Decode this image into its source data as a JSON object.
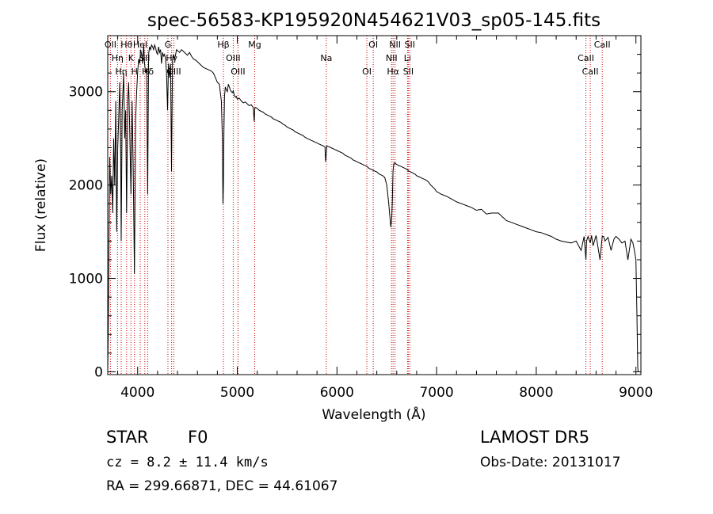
{
  "chart_data": {
    "type": "line",
    "title": "spec-56583-KP195920N454621V03_sp05-145.fits",
    "xlabel": "Wavelength (Å)",
    "ylabel": "Flux (relative)",
    "xlim": [
      3700,
      9050
    ],
    "ylim": [
      -30,
      3600
    ],
    "xticks": [
      4000,
      5000,
      6000,
      7000,
      8000,
      9000
    ],
    "yticks": [
      0,
      1000,
      2000,
      3000
    ],
    "grid": false,
    "line_color": "#000000",
    "marker_color": "#cc0000",
    "spectrum": {
      "x": [
        3700,
        3705,
        3712,
        3720,
        3730,
        3740,
        3750,
        3760,
        3770,
        3780,
        3790,
        3800,
        3810,
        3820,
        3830,
        3835,
        3845,
        3860,
        3870,
        3880,
        3889,
        3900,
        3910,
        3920,
        3933,
        3945,
        3955,
        3968,
        3980,
        3990,
        4000,
        4010,
        4020,
        4030,
        4040,
        4050,
        4060,
        4070,
        4080,
        4090,
        4101,
        4110,
        4120,
        4130,
        4140,
        4150,
        4160,
        4170,
        4180,
        4190,
        4200,
        4210,
        4220,
        4230,
        4240,
        4250,
        4260,
        4270,
        4280,
        4290,
        4300,
        4310,
        4320,
        4330,
        4340,
        4350,
        4360,
        4370,
        4380,
        4390,
        4400,
        4420,
        4440,
        4460,
        4480,
        4500,
        4520,
        4540,
        4560,
        4580,
        4600,
        4620,
        4640,
        4660,
        4680,
        4700,
        4720,
        4740,
        4760,
        4780,
        4800,
        4820,
        4840,
        4850,
        4856,
        4861,
        4866,
        4872,
        4880,
        4890,
        4900,
        4910,
        4920,
        4930,
        4940,
        4950,
        4960,
        4970,
        4980,
        4990,
        5000,
        5020,
        5040,
        5060,
        5080,
        5100,
        5120,
        5140,
        5160,
        5170,
        5175,
        5185,
        5200,
        5220,
        5240,
        5260,
        5280,
        5300,
        5320,
        5340,
        5360,
        5380,
        5400,
        5420,
        5440,
        5460,
        5480,
        5500,
        5520,
        5540,
        5560,
        5580,
        5600,
        5620,
        5640,
        5660,
        5680,
        5700,
        5720,
        5740,
        5760,
        5780,
        5800,
        5820,
        5840,
        5860,
        5880,
        5886,
        5890,
        5894,
        5900,
        5920,
        5940,
        5960,
        5980,
        6000,
        6020,
        6040,
        6060,
        6080,
        6100,
        6120,
        6140,
        6160,
        6180,
        6200,
        6220,
        6240,
        6260,
        6280,
        6300,
        6320,
        6340,
        6360,
        6380,
        6400,
        6420,
        6440,
        6460,
        6480,
        6500,
        6520,
        6540,
        6550,
        6556,
        6560,
        6563,
        6567,
        6572,
        6580,
        6590,
        6600,
        6620,
        6640,
        6660,
        6680,
        6700,
        6720,
        6740,
        6760,
        6780,
        6800,
        6820,
        6840,
        6860,
        6880,
        6900,
        6920,
        6940,
        6960,
        6980,
        7000,
        7050,
        7100,
        7150,
        7200,
        7250,
        7300,
        7350,
        7400,
        7450,
        7500,
        7550,
        7600,
        7620,
        7640,
        7660,
        7680,
        7700,
        7750,
        7800,
        7850,
        7900,
        7950,
        8000,
        8050,
        8100,
        8150,
        8200,
        8250,
        8300,
        8350,
        8400,
        8450,
        8480,
        8498,
        8505,
        8520,
        8542,
        8555,
        8570,
        8600,
        8640,
        8662,
        8675,
        8690,
        8720,
        8750,
        8780,
        8800,
        8830,
        8860,
        8890,
        8920,
        8950,
        8970,
        8985,
        9000,
        9010,
        9018,
        9023
      ],
      "y": [
        0,
        400,
        1300,
        2300,
        1900,
        2100,
        1700,
        2500,
        2000,
        2900,
        1500,
        2400,
        2700,
        3100,
        2300,
        1400,
        2800,
        3200,
        2500,
        2800,
        1700,
        2900,
        3100,
        2600,
        1900,
        2900,
        2200,
        1050,
        2700,
        3000,
        3200,
        3350,
        3300,
        3450,
        3400,
        3300,
        3500,
        3300,
        3200,
        3250,
        1900,
        3400,
        3480,
        3450,
        3500,
        3480,
        3450,
        3500,
        3470,
        3420,
        3400,
        3480,
        3420,
        3450,
        3300,
        3420,
        3380,
        3400,
        3350,
        3200,
        2800,
        3300,
        3150,
        3300,
        2150,
        3350,
        3400,
        3350,
        3390,
        3450,
        3440,
        3420,
        3450,
        3430,
        3410,
        3390,
        3420,
        3380,
        3350,
        3340,
        3320,
        3300,
        3280,
        3260,
        3250,
        3240,
        3230,
        3220,
        3200,
        3150,
        3100,
        3080,
        2900,
        2500,
        1800,
        2000,
        2600,
        2950,
        3050,
        3020,
        3000,
        3080,
        3050,
        3020,
        3000,
        2990,
        3010,
        2960,
        2940,
        2950,
        2920,
        2930,
        2900,
        2880,
        2890,
        2870,
        2850,
        2860,
        2830,
        2680,
        2820,
        2830,
        2820,
        2800,
        2790,
        2780,
        2760,
        2750,
        2740,
        2730,
        2710,
        2700,
        2690,
        2680,
        2670,
        2650,
        2640,
        2620,
        2610,
        2600,
        2590,
        2570,
        2560,
        2550,
        2540,
        2530,
        2510,
        2500,
        2490,
        2480,
        2470,
        2460,
        2450,
        2440,
        2430,
        2420,
        2410,
        2250,
        2300,
        2350,
        2420,
        2410,
        2400,
        2390,
        2380,
        2370,
        2360,
        2350,
        2340,
        2320,
        2310,
        2300,
        2290,
        2270,
        2260,
        2250,
        2240,
        2230,
        2220,
        2210,
        2200,
        2180,
        2170,
        2160,
        2150,
        2140,
        2120,
        2110,
        2100,
        2080,
        2000,
        1800,
        1550,
        1650,
        1850,
        2050,
        2150,
        2200,
        2230,
        2240,
        2230,
        2220,
        2210,
        2200,
        2190,
        2180,
        2170,
        2150,
        2140,
        2130,
        2120,
        2100,
        2090,
        2080,
        2070,
        2060,
        2050,
        2030,
        2000,
        1980,
        1960,
        1930,
        1900,
        1880,
        1850,
        1820,
        1800,
        1780,
        1760,
        1730,
        1740,
        1690,
        1700,
        1700,
        1700,
        1680,
        1660,
        1640,
        1620,
        1600,
        1580,
        1560,
        1540,
        1520,
        1500,
        1490,
        1470,
        1450,
        1420,
        1400,
        1390,
        1380,
        1400,
        1300,
        1450,
        1200,
        1400,
        1450,
        1380,
        1460,
        1350,
        1460,
        1200,
        1450,
        1450,
        1400,
        1440,
        1300,
        1420,
        1450,
        1420,
        1380,
        1400,
        1200,
        1420,
        1380,
        1300,
        1200,
        600,
        50,
        0
      ]
    },
    "markers": [
      {
        "wave": 3727,
        "label": "OII"
      },
      {
        "wave": 3798,
        "label": "Hη"
      },
      {
        "wave": 3835,
        "label": "Hη"
      },
      {
        "wave": 3889,
        "label": "Hθ"
      },
      {
        "wave": 3933,
        "label": "K"
      },
      {
        "wave": 3968,
        "label": "H"
      },
      {
        "wave": 4026,
        "label": "HeI"
      },
      {
        "wave": 4072,
        "label": "SII"
      },
      {
        "wave": 4102,
        "label": "Hδ"
      },
      {
        "wave": 4304,
        "label": "G"
      },
      {
        "wave": 4341,
        "label": "Hγ"
      },
      {
        "wave": 4363,
        "label": "OIII"
      },
      {
        "wave": 4861,
        "label": "Hβ"
      },
      {
        "wave": 4959,
        "label": "OIII"
      },
      {
        "wave": 5007,
        "label": "OIII"
      },
      {
        "wave": 5175,
        "label": "Mg"
      },
      {
        "wave": 5893,
        "label": "Na"
      },
      {
        "wave": 6300,
        "label": "OI"
      },
      {
        "wave": 6364,
        "label": "OI"
      },
      {
        "wave": 6548,
        "label": "NII"
      },
      {
        "wave": 6563,
        "label": "Hα"
      },
      {
        "wave": 6583,
        "label": "NII"
      },
      {
        "wave": 6708,
        "label": "Li"
      },
      {
        "wave": 6716,
        "label": "SII"
      },
      {
        "wave": 6731,
        "label": "SII"
      },
      {
        "wave": 8498,
        "label": "CaII"
      },
      {
        "wave": 8542,
        "label": "CaII"
      },
      {
        "wave": 8662,
        "label": "CaII"
      }
    ]
  },
  "info": {
    "object_type": "STAR",
    "subclass": "F0",
    "survey": "LAMOST DR5",
    "redshift": "cz = 8.2 ± 11.4 km/s",
    "obs_date": "Obs-Date: 20131017",
    "coords": "RA = 299.66871, DEC =  44.61067"
  }
}
